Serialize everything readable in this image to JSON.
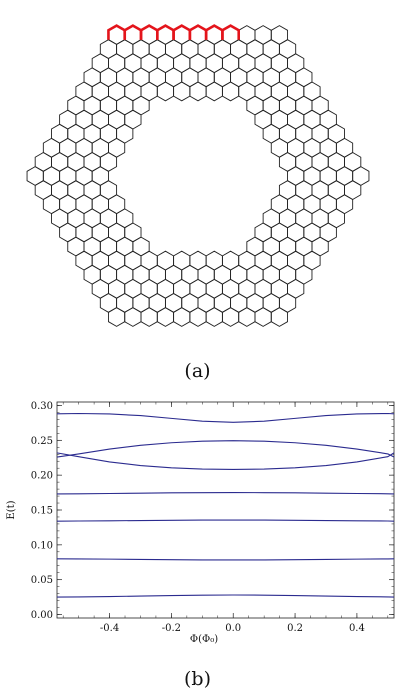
{
  "captions": {
    "a": "(a)",
    "b": "(b)"
  },
  "lattice": {
    "hex_color": "#222222",
    "highlight_color": "#e4141b",
    "highlighted_edge": "top",
    "highlighted_count": 8
  },
  "chart_data": {
    "type": "line",
    "xlabel": "Φ(Φ₀)",
    "ylabel": "E(t)",
    "xlim": [
      -0.57,
      0.52
    ],
    "ylim": [
      -0.005,
      0.305
    ],
    "x_ticks": [
      "-0.4",
      "-0.2",
      "0.0",
      "0.2",
      "0.4"
    ],
    "x_tick_values": [
      -0.4,
      -0.2,
      0.0,
      0.2,
      0.4
    ],
    "y_ticks": [
      "0.00",
      "0.05",
      "0.10",
      "0.15",
      "0.20",
      "0.25",
      "0.30"
    ],
    "y_tick_values": [
      0.0,
      0.05,
      0.1,
      0.15,
      0.2,
      0.25,
      0.3
    ],
    "line_color": "#2b2b8f",
    "x": [
      -0.57,
      -0.5,
      -0.4,
      -0.3,
      -0.2,
      -0.1,
      0.0,
      0.1,
      0.2,
      0.3,
      0.4,
      0.5,
      0.52
    ],
    "series": [
      {
        "values": [
          0.025,
          0.0253,
          0.0258,
          0.0265,
          0.0272,
          0.0278,
          0.028,
          0.0278,
          0.0272,
          0.0265,
          0.0258,
          0.0253,
          0.025
        ]
      },
      {
        "values": [
          0.08,
          0.0798,
          0.0795,
          0.0791,
          0.0787,
          0.0784,
          0.0783,
          0.0784,
          0.0787,
          0.0791,
          0.0795,
          0.0798,
          0.08
        ]
      },
      {
        "values": [
          0.134,
          0.1342,
          0.1345,
          0.1349,
          0.1352,
          0.1355,
          0.1356,
          0.1355,
          0.1352,
          0.1349,
          0.1345,
          0.1342,
          0.134
        ]
      },
      {
        "values": [
          0.173,
          0.1733,
          0.1737,
          0.1742,
          0.1746,
          0.1749,
          0.175,
          0.1749,
          0.1746,
          0.1742,
          0.1737,
          0.1733,
          0.173
        ]
      },
      {
        "values": [
          0.232,
          0.2265,
          0.219,
          0.2138,
          0.2105,
          0.2087,
          0.2082,
          0.2087,
          0.2105,
          0.2138,
          0.219,
          0.2265,
          0.232
        ]
      },
      {
        "values": [
          0.226,
          0.2305,
          0.2375,
          0.2428,
          0.2465,
          0.2487,
          0.2495,
          0.2487,
          0.2465,
          0.2428,
          0.2375,
          0.2305,
          0.226
        ]
      },
      {
        "values": [
          0.288,
          0.2885,
          0.2878,
          0.2855,
          0.2815,
          0.2775,
          0.2758,
          0.2775,
          0.2815,
          0.2855,
          0.2878,
          0.2885,
          0.288
        ]
      }
    ]
  }
}
